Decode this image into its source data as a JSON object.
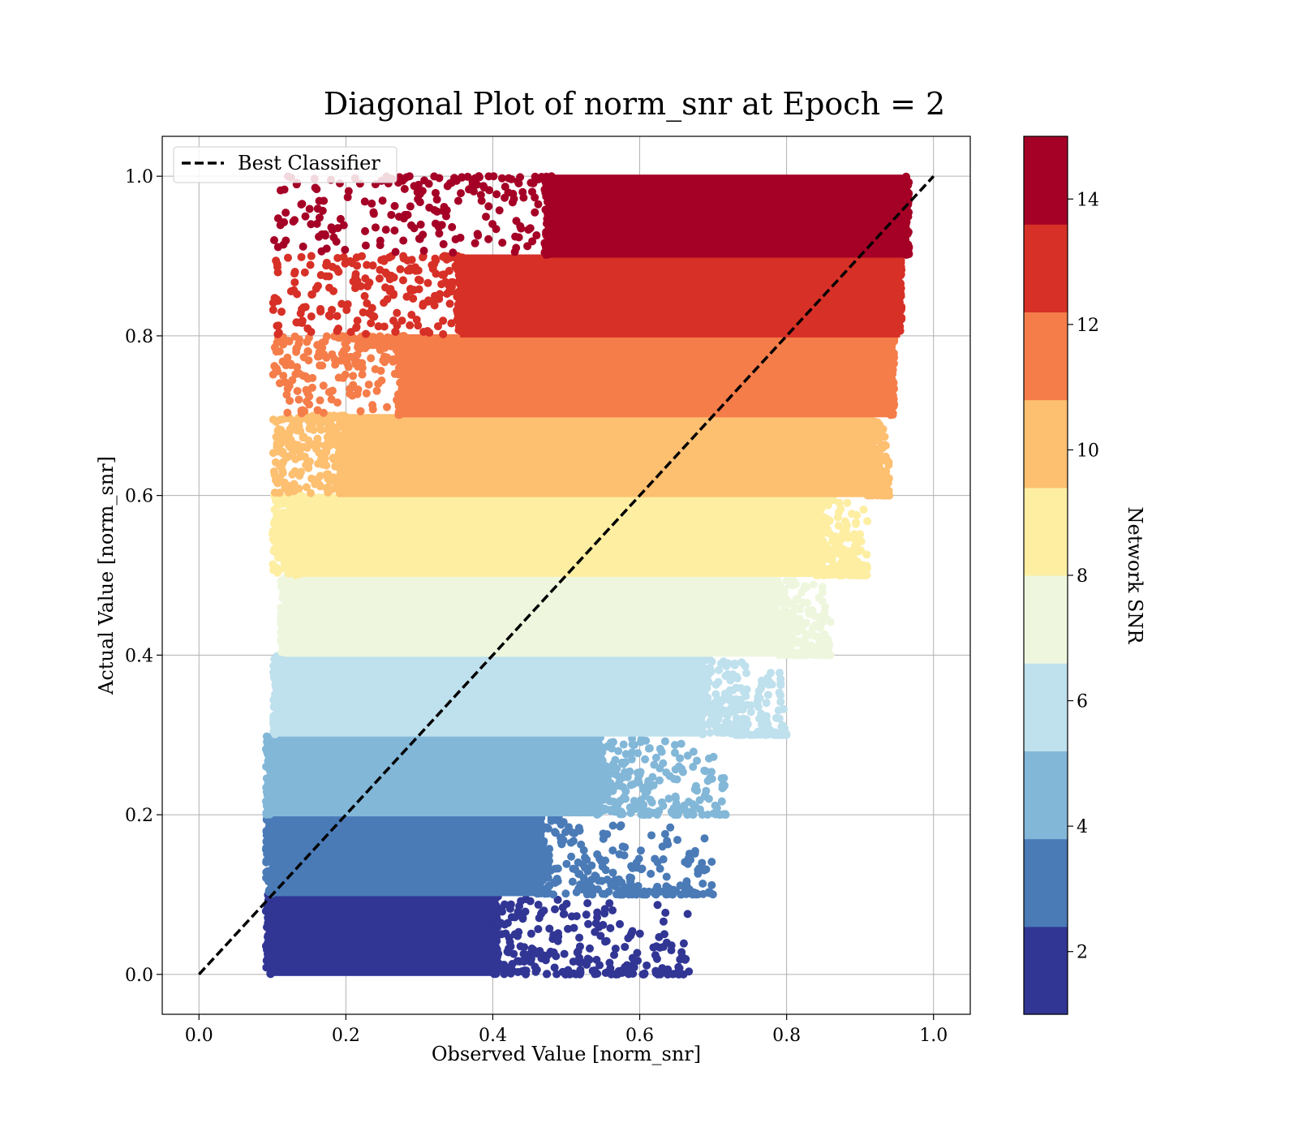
{
  "chart_data": {
    "type": "scatter",
    "title": "Diagonal Plot of norm_snr at Epoch = 2",
    "xlabel": "Observed Value [norm_snr]",
    "ylabel": "Actual Value [norm_snr]",
    "xlim": [
      -0.05,
      1.05
    ],
    "ylim": [
      -0.05,
      1.05
    ],
    "x_ticks": [
      "0.0",
      "0.2",
      "0.4",
      "0.6",
      "0.8",
      "1.0"
    ],
    "y_ticks": [
      "0.0",
      "0.2",
      "0.4",
      "0.6",
      "0.8",
      "1.0"
    ],
    "grid": true,
    "legend": {
      "placement": "upper-left",
      "entries": [
        "Best Classifier"
      ]
    },
    "reference_line": {
      "name": "Best Classifier",
      "x": [
        0.0,
        1.0
      ],
      "y": [
        0.0,
        1.0
      ],
      "style": "dashed",
      "color": "#000000"
    },
    "colorbar": {
      "label": "Network SNR",
      "range": [
        1,
        15
      ],
      "ticks": [
        "2",
        "4",
        "6",
        "8",
        "10",
        "12",
        "14"
      ],
      "tick_values": [
        2,
        4,
        6,
        8,
        10,
        12,
        14
      ],
      "colors": [
        "#313695",
        "#4a7bb7",
        "#82b7d8",
        "#bfe0ed",
        "#eef7de",
        "#fdeea2",
        "#fdbf70",
        "#f57d4a",
        "#d73027",
        "#a50026"
      ]
    },
    "bands": [
      {
        "y_range": [
          0.0,
          0.1
        ],
        "core_x": [
          0.1,
          0.4
        ],
        "spread_max_x": 0.67,
        "color": "#313695"
      },
      {
        "y_range": [
          0.1,
          0.2
        ],
        "core_x": [
          0.1,
          0.46
        ],
        "spread_max_x": 0.7,
        "color": "#4a7bb7"
      },
      {
        "y_range": [
          0.2,
          0.3
        ],
        "core_x": [
          0.1,
          0.54
        ],
        "spread_max_x": 0.72,
        "color": "#82b7d8"
      },
      {
        "y_range": [
          0.3,
          0.4
        ],
        "core_x": [
          0.11,
          0.68
        ],
        "spread_max_x": 0.8,
        "color": "#bfe0ed"
      },
      {
        "y_range": [
          0.4,
          0.5
        ],
        "core_x": [
          0.12,
          0.78
        ],
        "spread_max_x": 0.86,
        "color": "#eef7de"
      },
      {
        "y_range": [
          0.5,
          0.6
        ],
        "core_x": [
          0.14,
          0.84
        ],
        "spread_max_x": 0.91,
        "color": "#fdeea2"
      },
      {
        "y_range": [
          0.6,
          0.7
        ],
        "core_x": [
          0.2,
          0.91
        ],
        "spread_max_x": 0.94,
        "color": "#fdbf70"
      },
      {
        "y_range": [
          0.7,
          0.8
        ],
        "core_x": [
          0.28,
          0.94
        ],
        "spread_max_x": 0.94,
        "color": "#f57d4a"
      },
      {
        "y_range": [
          0.8,
          0.9
        ],
        "core_x": [
          0.36,
          0.95
        ],
        "spread_max_x": 0.95,
        "color": "#d73027"
      },
      {
        "y_range": [
          0.9,
          1.0
        ],
        "core_x": [
          0.48,
          0.96
        ],
        "spread_max_x": 0.96,
        "color": "#a50026"
      }
    ]
  }
}
